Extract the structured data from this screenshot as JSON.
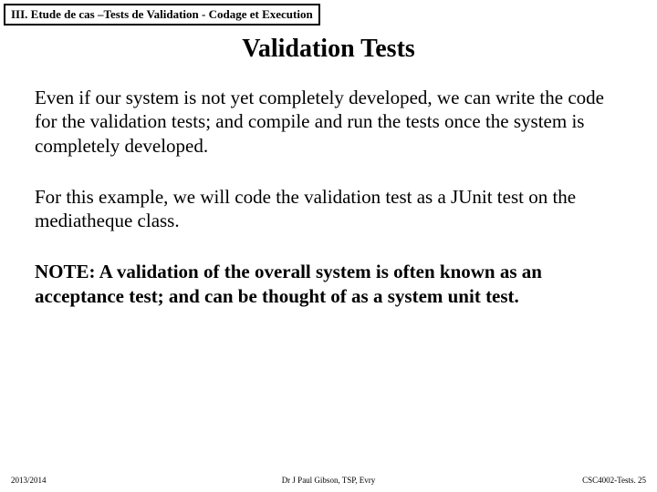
{
  "header": {
    "section_label": "III. Etude de cas –Tests de Validation - Codage et Execution"
  },
  "title": "Validation Tests",
  "paragraphs": {
    "p1": "Even if our system is not yet completely developed, we can write the code for the validation tests; and compile and run the tests once the system is completely developed.",
    "p2": "For this example, we will code the validation test as a JUnit test on the mediatheque class.",
    "note": "NOTE: A validation of the overall system is often known as an acceptance test; and can be thought of as a system unit test."
  },
  "footer": {
    "left": "2013/2014",
    "center": "Dr J Paul Gibson, TSP, Evry",
    "right": "CSC4002-Tests. 25"
  }
}
